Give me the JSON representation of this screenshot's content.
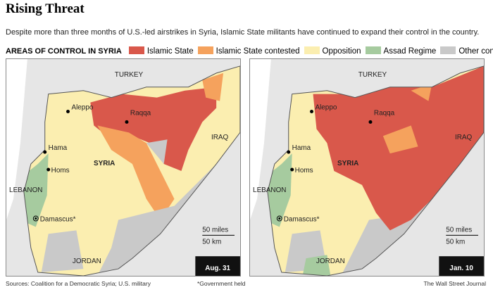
{
  "header": {
    "title": "Rising Threat",
    "subtitle": "Despite more than three months of U.S.-led airstrikes in Syria, Islamic State militants have continued to expand their control in the country."
  },
  "legend": {
    "title": "AREAS OF CONTROL IN SYRIA",
    "items": [
      {
        "label": "Islamic State",
        "color": "#d9584b"
      },
      {
        "label": "Islamic State contested",
        "color": "#f5a25d"
      },
      {
        "label": "Opposition",
        "color": "#fbeeb0"
      },
      {
        "label": "Assad Regime",
        "color": "#a6cb9f"
      },
      {
        "label": "Other contested",
        "color": "#c9c9c9"
      }
    ]
  },
  "maps": [
    {
      "date": "Aug. 31",
      "places": [
        "TURKEY",
        "IRAQ",
        "SYRIA",
        "LEBANON",
        "JORDAN",
        "Aleppo",
        "Raqqa",
        "Hama",
        "Homs",
        "Damascus*"
      ],
      "scale": [
        "50 miles",
        "50 km"
      ]
    },
    {
      "date": "Jan. 10",
      "places": [
        "TURKEY",
        "IRAQ",
        "SYRIA",
        "LEBANON",
        "JORDAN",
        "Aleppo",
        "Raqqa",
        "Hama",
        "Homs",
        "Damascus*"
      ],
      "scale": [
        "50 miles",
        "50 km"
      ]
    }
  ],
  "footer": {
    "source": "Sources: Coalition for a Democratic Syria; U.S. military",
    "note": "*Government held",
    "credit": "The Wall Street Journal"
  }
}
